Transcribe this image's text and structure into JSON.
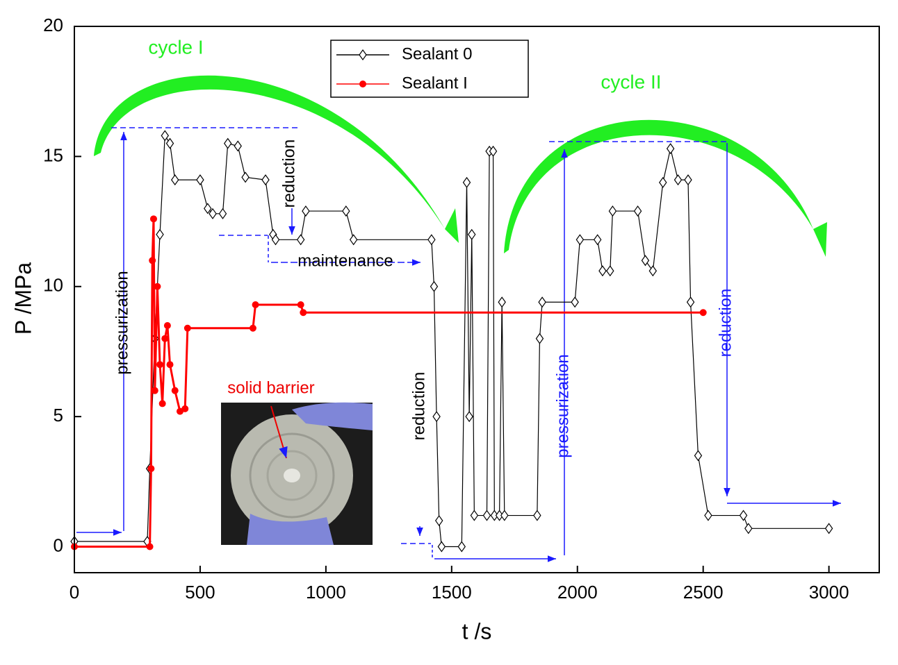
{
  "chart_data": {
    "type": "line",
    "x_label": "t /s",
    "y_label": "P /MPa",
    "xlim": [
      0,
      3200
    ],
    "ylim": [
      -1,
      20
    ],
    "xticks": [
      0,
      500,
      1000,
      1500,
      2000,
      2500,
      3000
    ],
    "yticks": [
      0,
      5,
      10,
      15,
      20
    ],
    "legend": "top-center",
    "annotations": [
      "cycle I",
      "cycle II",
      "pressurization",
      "reduction",
      "maintenance",
      "reduction",
      "pressurization",
      "reduction",
      "solid barrier"
    ],
    "series": [
      {
        "name": "Sealant 0",
        "color": "#000000",
        "marker": "diamond",
        "x": [
          0,
          290,
          300,
          320,
          340,
          360,
          380,
          400,
          500,
          530,
          550,
          590,
          610,
          650,
          680,
          760,
          790,
          800,
          900,
          920,
          1080,
          1110,
          1420,
          1430,
          1440,
          1450,
          1460,
          1540,
          1560,
          1570,
          1580,
          1590,
          1640,
          1650,
          1665,
          1670,
          1690,
          1700,
          1710,
          1840,
          1850,
          1860,
          1990,
          2010,
          2080,
          2100,
          2130,
          2140,
          2240,
          2270,
          2300,
          2340,
          2370,
          2400,
          2440,
          2450,
          2480,
          2520,
          2660,
          2680,
          3000
        ],
        "values": [
          0.2,
          0.2,
          3,
          8,
          12,
          15.8,
          15.5,
          14.1,
          14.1,
          13,
          12.8,
          12.8,
          15.5,
          15.4,
          14.2,
          14.1,
          12,
          11.8,
          11.8,
          12.9,
          12.9,
          11.8,
          11.8,
          10,
          5,
          1,
          0,
          0,
          14,
          5,
          12,
          1.2,
          1.2,
          15.2,
          15.2,
          1.2,
          1.2,
          9.4,
          1.2,
          1.2,
          8,
          9.4,
          9.4,
          11.8,
          11.8,
          10.6,
          10.6,
          12.9,
          12.9,
          11,
          10.6,
          14,
          15.3,
          14.1,
          14.1,
          9.4,
          3.5,
          1.2,
          1.2,
          0.7,
          0.7
        ]
      },
      {
        "name": "Sealant I",
        "color": "#ff0000",
        "marker": "circle",
        "x": [
          0,
          300,
          305,
          310,
          315,
          320,
          330,
          340,
          350,
          360,
          370,
          380,
          400,
          420,
          440,
          450,
          710,
          720,
          900,
          910,
          2500
        ],
        "values": [
          0,
          0,
          3,
          11,
          12.6,
          6,
          10,
          7,
          5.5,
          8,
          8.5,
          7,
          6,
          5.2,
          5.3,
          8.4,
          8.4,
          9.3,
          9.3,
          9,
          9
        ]
      }
    ]
  }
}
